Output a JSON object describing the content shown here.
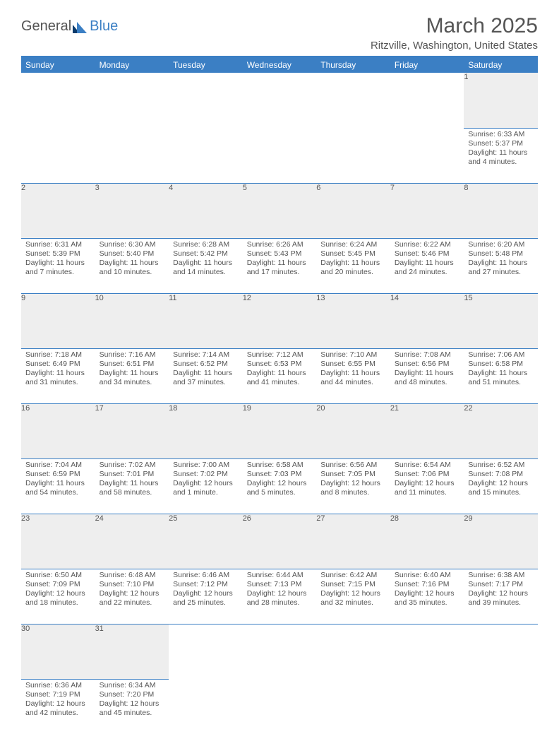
{
  "brand": {
    "name1": "General",
    "name2": "Blue"
  },
  "title": "March 2025",
  "subtitle": "Ritzville, Washington, United States",
  "colors": {
    "accent": "#3b7fc4",
    "grey_bg": "#eeeeee",
    "text": "#555555"
  },
  "weekdays": [
    "Sunday",
    "Monday",
    "Tuesday",
    "Wednesday",
    "Thursday",
    "Friday",
    "Saturday"
  ],
  "weeks": [
    [
      null,
      null,
      null,
      null,
      null,
      null,
      {
        "d": "1",
        "sr": "6:33 AM",
        "ss": "5:37 PM",
        "dl": "11 hours and 4 minutes."
      }
    ],
    [
      {
        "d": "2",
        "sr": "6:31 AM",
        "ss": "5:39 PM",
        "dl": "11 hours and 7 minutes."
      },
      {
        "d": "3",
        "sr": "6:30 AM",
        "ss": "5:40 PM",
        "dl": "11 hours and 10 minutes."
      },
      {
        "d": "4",
        "sr": "6:28 AM",
        "ss": "5:42 PM",
        "dl": "11 hours and 14 minutes."
      },
      {
        "d": "5",
        "sr": "6:26 AM",
        "ss": "5:43 PM",
        "dl": "11 hours and 17 minutes."
      },
      {
        "d": "6",
        "sr": "6:24 AM",
        "ss": "5:45 PM",
        "dl": "11 hours and 20 minutes."
      },
      {
        "d": "7",
        "sr": "6:22 AM",
        "ss": "5:46 PM",
        "dl": "11 hours and 24 minutes."
      },
      {
        "d": "8",
        "sr": "6:20 AM",
        "ss": "5:48 PM",
        "dl": "11 hours and 27 minutes."
      }
    ],
    [
      {
        "d": "9",
        "sr": "7:18 AM",
        "ss": "6:49 PM",
        "dl": "11 hours and 31 minutes."
      },
      {
        "d": "10",
        "sr": "7:16 AM",
        "ss": "6:51 PM",
        "dl": "11 hours and 34 minutes."
      },
      {
        "d": "11",
        "sr": "7:14 AM",
        "ss": "6:52 PM",
        "dl": "11 hours and 37 minutes."
      },
      {
        "d": "12",
        "sr": "7:12 AM",
        "ss": "6:53 PM",
        "dl": "11 hours and 41 minutes."
      },
      {
        "d": "13",
        "sr": "7:10 AM",
        "ss": "6:55 PM",
        "dl": "11 hours and 44 minutes."
      },
      {
        "d": "14",
        "sr": "7:08 AM",
        "ss": "6:56 PM",
        "dl": "11 hours and 48 minutes."
      },
      {
        "d": "15",
        "sr": "7:06 AM",
        "ss": "6:58 PM",
        "dl": "11 hours and 51 minutes."
      }
    ],
    [
      {
        "d": "16",
        "sr": "7:04 AM",
        "ss": "6:59 PM",
        "dl": "11 hours and 54 minutes."
      },
      {
        "d": "17",
        "sr": "7:02 AM",
        "ss": "7:01 PM",
        "dl": "11 hours and 58 minutes."
      },
      {
        "d": "18",
        "sr": "7:00 AM",
        "ss": "7:02 PM",
        "dl": "12 hours and 1 minute."
      },
      {
        "d": "19",
        "sr": "6:58 AM",
        "ss": "7:03 PM",
        "dl": "12 hours and 5 minutes."
      },
      {
        "d": "20",
        "sr": "6:56 AM",
        "ss": "7:05 PM",
        "dl": "12 hours and 8 minutes."
      },
      {
        "d": "21",
        "sr": "6:54 AM",
        "ss": "7:06 PM",
        "dl": "12 hours and 11 minutes."
      },
      {
        "d": "22",
        "sr": "6:52 AM",
        "ss": "7:08 PM",
        "dl": "12 hours and 15 minutes."
      }
    ],
    [
      {
        "d": "23",
        "sr": "6:50 AM",
        "ss": "7:09 PM",
        "dl": "12 hours and 18 minutes."
      },
      {
        "d": "24",
        "sr": "6:48 AM",
        "ss": "7:10 PM",
        "dl": "12 hours and 22 minutes."
      },
      {
        "d": "25",
        "sr": "6:46 AM",
        "ss": "7:12 PM",
        "dl": "12 hours and 25 minutes."
      },
      {
        "d": "26",
        "sr": "6:44 AM",
        "ss": "7:13 PM",
        "dl": "12 hours and 28 minutes."
      },
      {
        "d": "27",
        "sr": "6:42 AM",
        "ss": "7:15 PM",
        "dl": "12 hours and 32 minutes."
      },
      {
        "d": "28",
        "sr": "6:40 AM",
        "ss": "7:16 PM",
        "dl": "12 hours and 35 minutes."
      },
      {
        "d": "29",
        "sr": "6:38 AM",
        "ss": "7:17 PM",
        "dl": "12 hours and 39 minutes."
      }
    ],
    [
      {
        "d": "30",
        "sr": "6:36 AM",
        "ss": "7:19 PM",
        "dl": "12 hours and 42 minutes."
      },
      {
        "d": "31",
        "sr": "6:34 AM",
        "ss": "7:20 PM",
        "dl": "12 hours and 45 minutes."
      },
      null,
      null,
      null,
      null,
      null
    ]
  ],
  "labels": {
    "sunrise": "Sunrise:",
    "sunset": "Sunset:",
    "daylight": "Daylight:"
  }
}
